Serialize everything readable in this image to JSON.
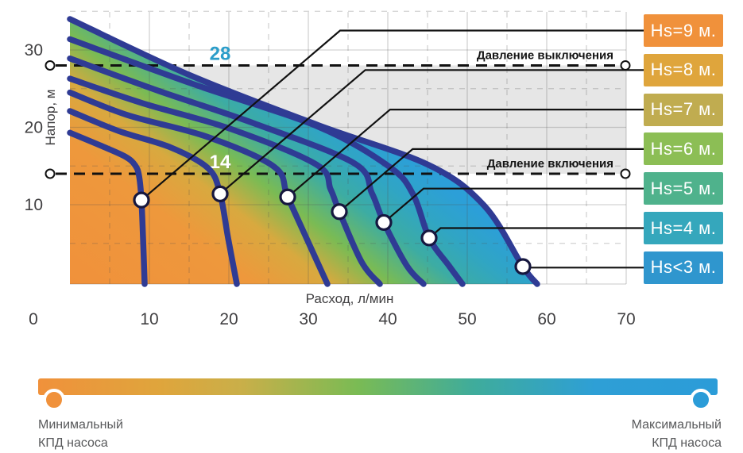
{
  "chart_data": {
    "type": "line",
    "title": "",
    "xlabel": "Расход, л/мин",
    "ylabel": "Напор, м",
    "xlim": [
      0,
      70
    ],
    "ylim": [
      0,
      35
    ],
    "x_ticks": [
      0,
      10,
      20,
      30,
      40,
      50,
      60,
      70
    ],
    "y_ticks": [
      10,
      20,
      30
    ],
    "grid": "solid major every 10 units, dashed minor every 5 units",
    "legend_position": "right",
    "curve_color": "#2F3B94",
    "marker": {
      "shape": "open-circle",
      "fill": "#ffffff",
      "ring": "#16173F"
    },
    "pressure_lines": [
      {
        "id": "cutoff",
        "value": 28,
        "value_label": "28",
        "label": "Давление выключения"
      },
      {
        "id": "cutin",
        "value": 14,
        "value_label": "14",
        "label": "Давление включения"
      }
    ],
    "band_between_pressure_lines_color": "#E6E6E6",
    "fill_gradient": [
      [
        0.0,
        "#F0913B"
      ],
      [
        0.33,
        "#EE983C"
      ],
      [
        0.47,
        "#D8A93F"
      ],
      [
        0.58,
        "#7ABB54"
      ],
      [
        0.7,
        "#3CACA4"
      ],
      [
        0.8,
        "#30A5C4"
      ],
      [
        0.9,
        "#2C9FD8"
      ],
      [
        1.0,
        "#2C9FD8"
      ]
    ],
    "series": [
      {
        "name": "Hs=9 м.",
        "badge_color": "#F0913B",
        "dot": [
          9.0,
          10.6
        ],
        "points": [
          [
            0,
            19.3
          ],
          [
            4.2,
            17.5
          ],
          [
            7,
            16.2
          ],
          [
            8.2,
            15.1
          ],
          [
            8.7,
            13.7
          ],
          [
            9,
            10.6
          ],
          [
            9.2,
            5.7
          ],
          [
            9.4,
            0
          ]
        ]
      },
      {
        "name": "Hs=8 м.",
        "badge_color": "#DFA53C",
        "dot": [
          18.9,
          11.4
        ],
        "points": [
          [
            0,
            22.1
          ],
          [
            6.2,
            19.5
          ],
          [
            12.7,
            17.4
          ],
          [
            17.4,
            14.7
          ],
          [
            18.9,
            11.4
          ],
          [
            19.9,
            5.7
          ],
          [
            21,
            0
          ]
        ]
      },
      {
        "name": "Hs=7 м.",
        "badge_color": "#C0AC50",
        "dot": [
          27.4,
          11.0
        ],
        "points": [
          [
            0,
            24.5
          ],
          [
            7.2,
            21.6
          ],
          [
            17.2,
            18.8
          ],
          [
            25.7,
            14.9
          ],
          [
            27.4,
            11
          ],
          [
            30.2,
            4.7
          ],
          [
            32.4,
            0
          ]
        ]
      },
      {
        "name": "Hs=6 м.",
        "badge_color": "#8CBE55",
        "dot": [
          33.9,
          9.1
        ],
        "points": [
          [
            0,
            26.3
          ],
          [
            9.2,
            23.1
          ],
          [
            20.2,
            19.8
          ],
          [
            31,
            15.2
          ],
          [
            32.8,
            12
          ],
          [
            33.9,
            9.1
          ],
          [
            36.7,
            2.6
          ],
          [
            39,
            0
          ]
        ]
      },
      {
        "name": "Hs=5 м.",
        "badge_color": "#4FB28C",
        "dot": [
          39.5,
          7.7
        ],
        "points": [
          [
            0,
            28.9
          ],
          [
            11.2,
            24.7
          ],
          [
            23.2,
            20.5
          ],
          [
            35.7,
            15.4
          ],
          [
            38,
            11.5
          ],
          [
            39.5,
            7.7
          ],
          [
            42.4,
            2.1
          ],
          [
            44.5,
            0
          ]
        ]
      },
      {
        "name": "Hs=4 м.",
        "badge_color": "#35A7BC",
        "dot": [
          45.2,
          5.7
        ],
        "points": [
          [
            0,
            31.4
          ],
          [
            15.2,
            25.7
          ],
          [
            31.2,
            20.1
          ],
          [
            40.2,
            14.9
          ],
          [
            43.2,
            11.3
          ],
          [
            45.2,
            5.7
          ],
          [
            47.7,
            2.1
          ],
          [
            49.4,
            0
          ]
        ]
      },
      {
        "name": "Hs<3 м.",
        "badge_color": "#2F96CE",
        "dot": [
          57,
          2
        ],
        "points": [
          [
            0,
            34
          ],
          [
            15.2,
            26.7
          ],
          [
            31.2,
            20.3
          ],
          [
            45.2,
            15.1
          ],
          [
            52.2,
            9.8
          ],
          [
            57,
            2
          ],
          [
            58.8,
            0
          ]
        ]
      }
    ]
  },
  "efficiency_bar": {
    "min_label_line1": "Минимальный",
    "min_label_line2": "КПД насоса",
    "max_label_line1": "Максимальный",
    "max_label_line2": "КПД насоса",
    "min_dot_color": "#F0913B",
    "max_dot_color": "#2B9CD8",
    "gradient_css": [
      "#F0913B 0%",
      "#DFA53C 18%",
      "#C9AF49 30%",
      "#7ABB54 47%",
      "#3FAC9B 64%",
      "#2E9FD6 82%",
      "#2B9CD8 100%"
    ]
  }
}
